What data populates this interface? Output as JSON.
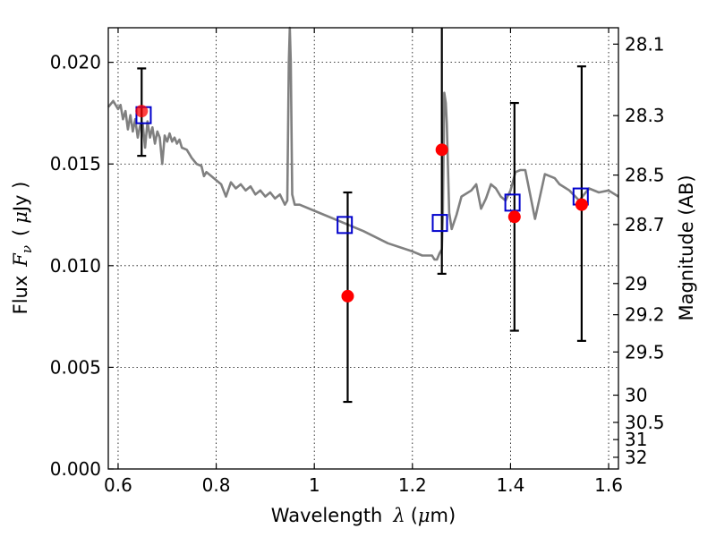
{
  "chart_data": {
    "type": "scatter",
    "x_axis": {
      "range": [
        0.58,
        1.62
      ],
      "ticks": [
        0.6,
        0.8,
        1.0,
        1.2,
        1.4,
        1.6
      ],
      "tick_labels": [
        "0.6",
        "0.8",
        "1",
        "1.2",
        "1.4",
        "1.6"
      ],
      "label_prefix": "Wavelength",
      "label_symbol": "λ",
      "label_unit_open": "(",
      "label_unit_mu": "μ",
      "label_unit_rest": "m)"
    },
    "y_axis": {
      "range": [
        0.0,
        0.0217
      ],
      "ticks": [
        0.0,
        0.005,
        0.01,
        0.015,
        0.02
      ],
      "tick_labels": [
        "0.000",
        "0.005",
        "0.010",
        "0.015",
        "0.020"
      ],
      "label_prefix": "Flux",
      "label_symbol": "F",
      "label_subscript": "ν",
      "label_unit_open": "(",
      "label_unit_mu": "μ",
      "label_unit_rest": "Jy )"
    },
    "y2_axis": {
      "label": "Magnitude (AB)",
      "ticks": [
        28.1,
        28.3,
        28.5,
        28.7,
        29,
        29.2,
        29.5,
        30,
        30.5,
        31,
        32
      ],
      "tick_labels": [
        "28.1",
        "28.3",
        "28.5",
        "28.7",
        "29",
        "29.2",
        "29.5",
        "30",
        "30.5",
        "31",
        "32"
      ]
    },
    "grid": true,
    "series": [
      {
        "kind": "line",
        "color": "#808080",
        "x": [
          0.58,
          0.59,
          0.6,
          0.605,
          0.61,
          0.615,
          0.62,
          0.625,
          0.63,
          0.635,
          0.64,
          0.645,
          0.65,
          0.655,
          0.66,
          0.665,
          0.67,
          0.675,
          0.68,
          0.685,
          0.69,
          0.695,
          0.7,
          0.705,
          0.71,
          0.715,
          0.72,
          0.725,
          0.73,
          0.74,
          0.75,
          0.76,
          0.77,
          0.775,
          0.78,
          0.79,
          0.8,
          0.81,
          0.82,
          0.83,
          0.84,
          0.85,
          0.86,
          0.87,
          0.88,
          0.89,
          0.9,
          0.91,
          0.92,
          0.93,
          0.94,
          0.945,
          0.948,
          0.95,
          0.952,
          0.955,
          0.96,
          0.97,
          1.0,
          1.05,
          1.1,
          1.15,
          1.2,
          1.22,
          1.24,
          1.245,
          1.25,
          1.255,
          1.26,
          1.262,
          1.265,
          1.268,
          1.27,
          1.275,
          1.28,
          1.29,
          1.3,
          1.32,
          1.33,
          1.34,
          1.35,
          1.36,
          1.37,
          1.38,
          1.39,
          1.4,
          1.41,
          1.42,
          1.43,
          1.45,
          1.47,
          1.49,
          1.5,
          1.52,
          1.54,
          1.56,
          1.58,
          1.6,
          1.62
        ],
        "y": [
          0.0178,
          0.0181,
          0.0177,
          0.0179,
          0.0172,
          0.0176,
          0.0167,
          0.0174,
          0.0166,
          0.0172,
          0.0163,
          0.0169,
          0.017,
          0.0158,
          0.0171,
          0.0163,
          0.0168,
          0.016,
          0.0166,
          0.0163,
          0.015,
          0.0164,
          0.0161,
          0.0165,
          0.0161,
          0.0163,
          0.016,
          0.0162,
          0.0158,
          0.0157,
          0.0153,
          0.015,
          0.0149,
          0.0144,
          0.0146,
          0.0144,
          0.0142,
          0.014,
          0.0134,
          0.0141,
          0.0138,
          0.014,
          0.0137,
          0.0139,
          0.0135,
          0.0137,
          0.0134,
          0.0136,
          0.0133,
          0.0135,
          0.013,
          0.0132,
          0.02,
          0.0217,
          0.02,
          0.0135,
          0.013,
          0.013,
          0.0127,
          0.0122,
          0.0117,
          0.0111,
          0.0107,
          0.0105,
          0.0105,
          0.0103,
          0.0103,
          0.0106,
          0.0108,
          0.0125,
          0.0185,
          0.018,
          0.017,
          0.0126,
          0.0118,
          0.0125,
          0.0134,
          0.0137,
          0.014,
          0.0128,
          0.0133,
          0.014,
          0.0138,
          0.0134,
          0.0132,
          0.0137,
          0.0146,
          0.0147,
          0.0147,
          0.0123,
          0.0145,
          0.0143,
          0.014,
          0.0137,
          0.0132,
          0.0138,
          0.0136,
          0.0137,
          0.0134
        ]
      },
      {
        "kind": "observed",
        "color": "#ff0000",
        "x": [
          0.648,
          1.068,
          1.26,
          1.408,
          1.545
        ],
        "y": [
          0.0176,
          0.0085,
          0.0157,
          0.0124,
          0.013
        ],
        "y_err_low": [
          0.0154,
          0.0033,
          0.0096,
          0.0068,
          0.0063
        ],
        "y_err_high": [
          0.0197,
          0.0136,
          0.0217,
          0.018,
          0.0198
        ]
      },
      {
        "kind": "model",
        "color": "#0000cc",
        "x": [
          0.652,
          1.062,
          1.256,
          1.404,
          1.543
        ],
        "y": [
          0.0174,
          0.012,
          0.0121,
          0.0131,
          0.0134
        ]
      }
    ]
  }
}
